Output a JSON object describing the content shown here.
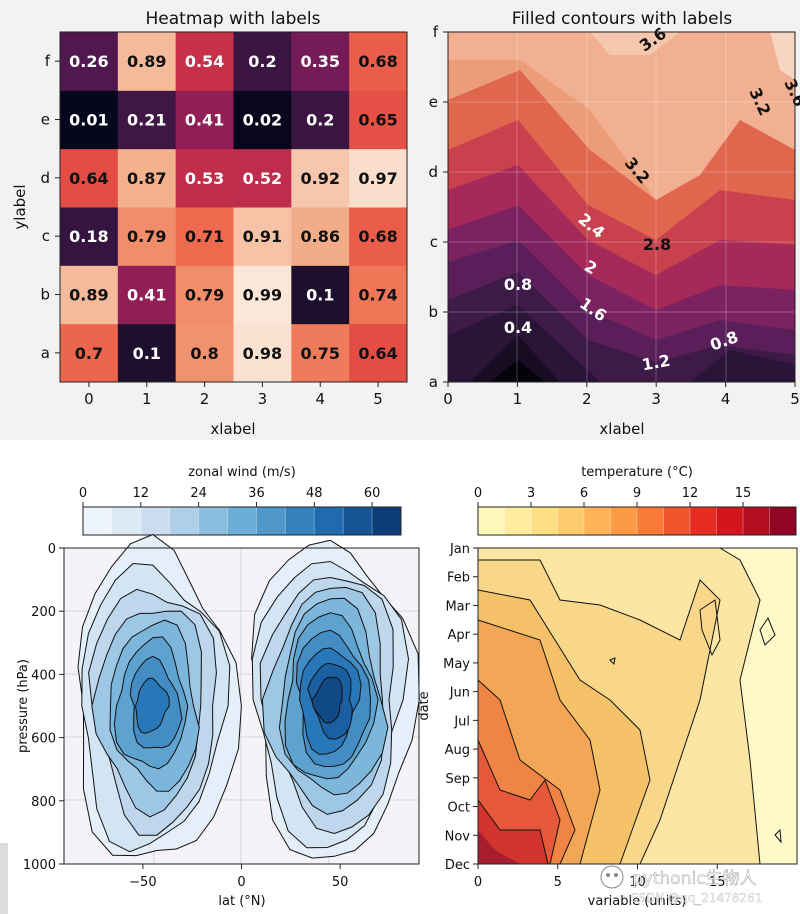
{
  "chart_data": [
    {
      "type": "heatmap",
      "title": "Heatmap with labels",
      "xlabel": "xlabel",
      "ylabel": "ylabel",
      "x": [
        "0",
        "1",
        "2",
        "3",
        "4",
        "5"
      ],
      "y": [
        "a",
        "b",
        "c",
        "d",
        "e",
        "f"
      ],
      "values": [
        [
          0.7,
          0.1,
          0.8,
          0.98,
          0.75,
          0.64
        ],
        [
          0.89,
          0.41,
          0.79,
          0.99,
          0.1,
          0.74
        ],
        [
          0.18,
          0.79,
          0.71,
          0.91,
          0.86,
          0.68
        ],
        [
          0.64,
          0.87,
          0.53,
          0.52,
          0.92,
          0.97
        ],
        [
          0.01,
          0.21,
          0.41,
          0.02,
          0.2,
          0.65
        ],
        [
          0.26,
          0.89,
          0.54,
          0.2,
          0.35,
          0.68
        ]
      ],
      "value_labels": [
        [
          "0.7",
          "0.1",
          "0.8",
          "0.98",
          "0.75",
          "0.64"
        ],
        [
          "0.89",
          "0.41",
          "0.79",
          "0.99",
          "0.1",
          "0.74"
        ],
        [
          "0.18",
          "0.79",
          "0.71",
          "0.91",
          "0.86",
          "0.68"
        ],
        [
          "0.64",
          "0.87",
          "0.53",
          "0.52",
          "0.92",
          "0.97"
        ],
        [
          "0.01",
          "0.21",
          "0.41",
          "0.02",
          "0.2",
          "0.65"
        ],
        [
          "0.26",
          "0.89",
          "0.54",
          "0.2",
          "0.35",
          "0.68"
        ]
      ],
      "colormap": "rocket"
    },
    {
      "type": "contour",
      "title": "Filled contours with labels",
      "xlabel": "xlabel",
      "x_ticks": [
        "0",
        "1",
        "2",
        "3",
        "4",
        "5"
      ],
      "y_ticks": [
        "a",
        "b",
        "c",
        "d",
        "e",
        "f"
      ],
      "xlim": [
        0,
        5
      ],
      "ylim": [
        0,
        5
      ],
      "levels": [
        0,
        0.4,
        0.8,
        1.2,
        1.6,
        2.0,
        2.4,
        2.8,
        3.2,
        3.6,
        4.0
      ],
      "contour_labels": [
        "3.6",
        "3.2",
        "3.6",
        "3.2",
        "2.4",
        "2.8",
        "2",
        "0.8",
        "1.6",
        "0.4",
        "1.2",
        "0.8"
      ],
      "colormap": "rocket"
    },
    {
      "type": "contour",
      "title": "",
      "xlabel": "lat (°N)",
      "ylabel": "pressure (hPa)",
      "x_ticks": [
        "−50",
        "0",
        "50"
      ],
      "y_ticks": [
        "0",
        "200",
        "400",
        "600",
        "800",
        "1000"
      ],
      "xlim": [
        -90,
        90
      ],
      "ylim": [
        1000,
        0
      ],
      "colorbar": {
        "label": "zonal wind (m/s)",
        "ticks": [
          "0",
          "12",
          "24",
          "36",
          "48",
          "60"
        ],
        "range": [
          0,
          66
        ],
        "n_levels": 11,
        "colormap": "Blues"
      },
      "jets": [
        {
          "lat": -45,
          "pressure": 500,
          "max": 50
        },
        {
          "lat": 45,
          "pressure": 480,
          "max": 60
        }
      ]
    },
    {
      "type": "contour",
      "title": "",
      "xlabel": "variable (units)",
      "ylabel": "date",
      "x_ticks": [
        "0",
        "5",
        "10",
        "15"
      ],
      "y_ticks": [
        "Jan",
        "Feb",
        "Mar",
        "Apr",
        "May",
        "Jun",
        "Jul",
        "Aug",
        "Sep",
        "Oct",
        "Nov",
        "Dec"
      ],
      "xlim": [
        0,
        20
      ],
      "colorbar": {
        "label": "temperature (°C)",
        "ticks": [
          "0",
          "3",
          "6",
          "9",
          "12",
          "15"
        ],
        "range": [
          0,
          18
        ],
        "n_levels": 12,
        "colormap": "YlOrRd"
      }
    }
  ],
  "watermark": {
    "brand": "pythonic生物人",
    "source": "CSDN @qq_21478261"
  }
}
